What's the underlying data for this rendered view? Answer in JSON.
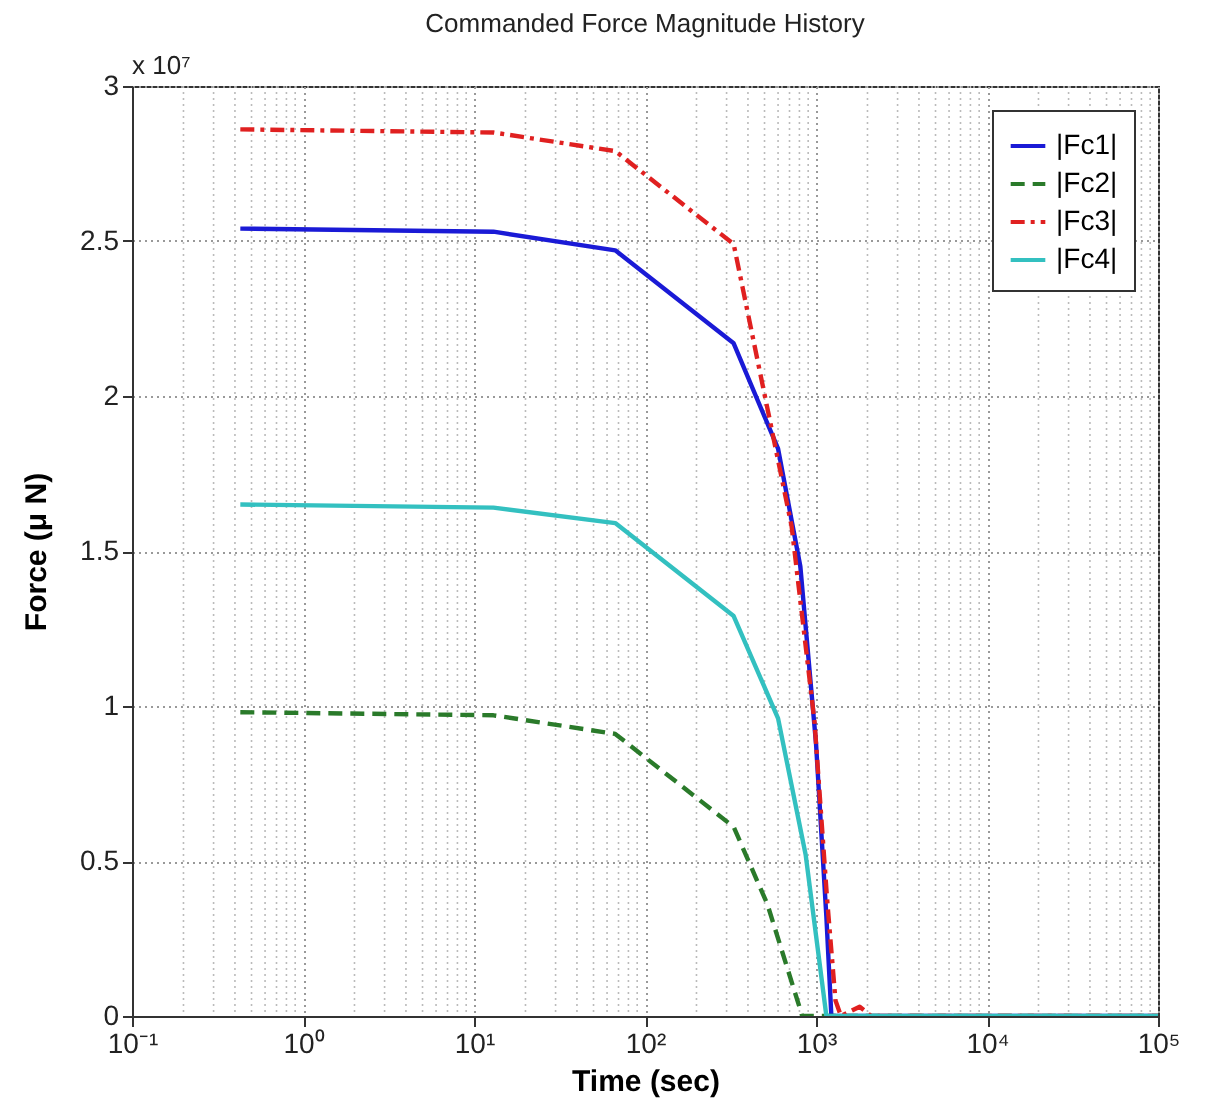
{
  "chart_data": {
    "type": "line",
    "title": "Commanded Force Magnitude History",
    "xlabel": "Time (sec)",
    "ylabel": "Force (μ N)",
    "annotations": [
      "x 10⁷"
    ],
    "log": "x",
    "grid": true,
    "legend": "top right",
    "xlim": [
      0.1,
      100000
    ],
    "xticks": [
      {
        "value": 0.1,
        "label": "10⁻¹"
      },
      {
        "value": 1,
        "label": "10⁰"
      },
      {
        "value": 10,
        "label": "10¹"
      },
      {
        "value": 100,
        "label": "10²"
      },
      {
        "value": 1000,
        "label": "10³"
      },
      {
        "value": 10000,
        "label": "10⁴"
      },
      {
        "value": 100000,
        "label": "10⁵"
      }
    ],
    "ylim": [
      0,
      3
    ],
    "yticks": [
      0,
      0.5,
      1,
      1.5,
      2,
      2.5,
      3
    ],
    "series": [
      {
        "name": "|Fc1|",
        "color": "#1a1ad6",
        "line_style": "solid",
        "x": [
          0.43,
          13,
          67,
          330,
          600,
          810,
          1000,
          1150,
          1230,
          100000
        ],
        "values": [
          2.54,
          2.53,
          2.47,
          2.17,
          1.83,
          1.45,
          0.88,
          0.32,
          0,
          0
        ]
      },
      {
        "name": "|Fc2|",
        "color": "#2a7a2a",
        "line_style": "dashed",
        "x": [
          0.43,
          13,
          67,
          330,
          520,
          810,
          830,
          100000
        ],
        "values": [
          0.98,
          0.97,
          0.91,
          0.61,
          0.36,
          0.02,
          0,
          0
        ]
      },
      {
        "name": "|Fc3|",
        "color": "#e02020",
        "line_style": "dashdot",
        "x": [
          0.43,
          13,
          67,
          330,
          720,
          980,
          1160,
          1300,
          1400,
          1800,
          2100,
          100000
        ],
        "values": [
          2.86,
          2.85,
          2.79,
          2.49,
          1.58,
          0.95,
          0.38,
          0.05,
          0,
          0.03,
          0,
          0
        ]
      },
      {
        "name": "|Fc4|",
        "color": "#33c0c0",
        "line_style": "solid",
        "x": [
          0.43,
          13,
          67,
          330,
          600,
          870,
          1150,
          100000
        ],
        "values": [
          1.65,
          1.64,
          1.59,
          1.29,
          0.96,
          0.52,
          0,
          0
        ]
      }
    ]
  }
}
